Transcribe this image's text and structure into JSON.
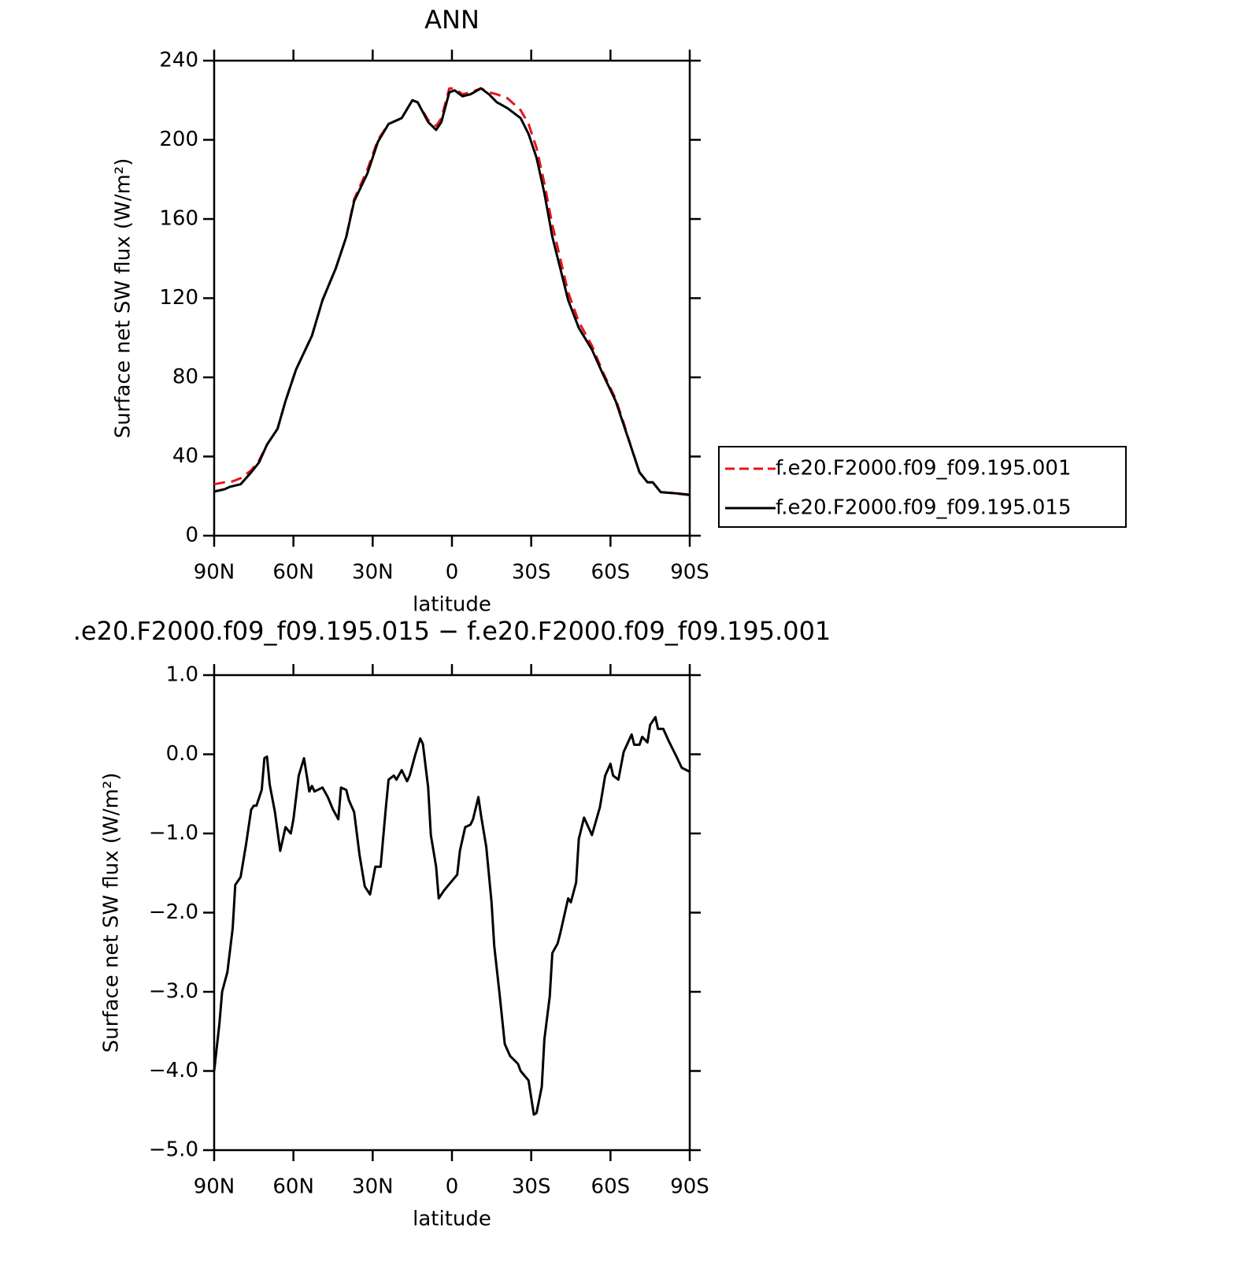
{
  "chart_data": [
    {
      "type": "line",
      "title": "ANN",
      "xlabel": "latitude",
      "ylabel": "Surface net SW flux (W/m²)",
      "xlim": [
        90,
        -90
      ],
      "xticks": [
        {
          "value": 90,
          "label": "90N"
        },
        {
          "value": 60,
          "label": "60N"
        },
        {
          "value": 30,
          "label": "30N"
        },
        0,
        {
          "value": -30,
          "label": "30S"
        },
        {
          "value": -60,
          "label": "60S"
        },
        {
          "value": -90,
          "label": "90S"
        }
      ],
      "ylim": [
        0,
        240
      ],
      "yticks": [
        0,
        40,
        80,
        120,
        160,
        200,
        240
      ],
      "legend": "right",
      "x": [
        90,
        86,
        84,
        80,
        76,
        73,
        70,
        66,
        63,
        59,
        53,
        49,
        44,
        40,
        37,
        32,
        28,
        24,
        19,
        15,
        13,
        9,
        6,
        4,
        1,
        -1,
        -4,
        -7,
        -11,
        -14,
        -17,
        -21,
        -26,
        -29,
        -32,
        -35,
        -38,
        -41,
        -44,
        -48,
        -53,
        -57,
        -62,
        -65,
        -68,
        -71,
        -74,
        -76,
        -79,
        -84,
        -90
      ],
      "series": [
        {
          "name": "f.e20.F2000.f09_f09.195.001",
          "color": "#e8141c",
          "style": "dashed",
          "values": [
            26,
            27,
            27,
            29,
            33,
            38,
            46,
            54,
            68,
            84,
            101,
            119,
            135,
            151,
            170,
            185,
            200,
            208,
            211,
            220,
            219,
            210,
            207,
            211,
            226,
            226,
            223,
            224,
            226,
            224,
            223,
            221,
            215,
            208,
            196,
            178,
            157,
            140,
            123,
            108,
            96,
            83,
            69,
            57,
            44,
            32,
            27,
            27,
            22,
            21.5,
            20.5
          ]
        },
        {
          "name": "f.e20.F2000.f09_f09.195.015",
          "color": "#000000",
          "style": "solid",
          "values": [
            22.3,
            23.5,
            24.7,
            26,
            32,
            37,
            46,
            54,
            68,
            84,
            101,
            119,
            135,
            151,
            169,
            183,
            199,
            208,
            211,
            220,
            219,
            209,
            205,
            209,
            224,
            225,
            222,
            223,
            226,
            223,
            219,
            216,
            211,
            203,
            191,
            173,
            151,
            135,
            119,
            105,
            94,
            82,
            68,
            56,
            44,
            32,
            27,
            27,
            22,
            21.5,
            20.7
          ]
        }
      ]
    },
    {
      "type": "line",
      "title": ".e20.F2000.f09_f09.195.015 − f.e20.F2000.f09_f09.195.001",
      "xlabel": "latitude",
      "ylabel": "Surface net SW flux (W/m²)",
      "xlim": [
        90,
        -90
      ],
      "xticks": [
        {
          "value": 90,
          "label": "90N"
        },
        {
          "value": 60,
          "label": "60N"
        },
        {
          "value": 30,
          "label": "30N"
        },
        0,
        {
          "value": -30,
          "label": "30S"
        },
        {
          "value": -60,
          "label": "60S"
        },
        {
          "value": -90,
          "label": "90S"
        }
      ],
      "ylim": [
        -5,
        1
      ],
      "yticks": [
        {
          "value": -5,
          "label": "−5.0"
        },
        {
          "value": -4,
          "label": "−4.0"
        },
        {
          "value": -3,
          "label": "−3.0"
        },
        {
          "value": -2,
          "label": "−2.0"
        },
        {
          "value": -1,
          "label": "−1.0"
        },
        {
          "value": 0,
          "label": "0.0"
        },
        {
          "value": 1,
          "label": "1.0"
        }
      ],
      "x": [
        90,
        88,
        87,
        85,
        83,
        82,
        80,
        78,
        76,
        75,
        74,
        72,
        71,
        70,
        69,
        67,
        65,
        63,
        61,
        60,
        58,
        56,
        54,
        53,
        52,
        49,
        47,
        45,
        43,
        42,
        40,
        39,
        37,
        35,
        33,
        31,
        29,
        27,
        25,
        24,
        22,
        21,
        19,
        17,
        16,
        14,
        12,
        11,
        9,
        8,
        6,
        5,
        3,
        1,
        -2,
        -3,
        -5,
        -7,
        -8,
        -10,
        -11,
        -13,
        -15,
        -16,
        -18,
        -20,
        -22,
        -25,
        -26,
        -29,
        -31,
        -32,
        -34,
        -35,
        -37,
        -38,
        -40,
        -41,
        -44,
        -45,
        -47,
        -48,
        -50,
        -53,
        -56,
        -58,
        -60,
        -61,
        -63,
        -65,
        -68,
        -69,
        -71,
        -72,
        -74,
        -75,
        -77,
        -78,
        -80,
        -82,
        -85,
        -87,
        -90
      ],
      "series": [
        {
          "color": "#000000",
          "style": "solid",
          "values": [
            -4.0,
            -3.4,
            -3.0,
            -2.75,
            -2.2,
            -1.65,
            -1.55,
            -1.15,
            -0.7,
            -0.65,
            -0.65,
            -0.45,
            -0.05,
            -0.03,
            -0.38,
            -0.73,
            -1.22,
            -0.92,
            -1.0,
            -0.82,
            -0.27,
            -0.05,
            -0.47,
            -0.4,
            -0.47,
            -0.42,
            -0.54,
            -0.7,
            -0.82,
            -0.42,
            -0.45,
            -0.58,
            -0.73,
            -1.27,
            -1.67,
            -1.77,
            -1.42,
            -1.42,
            -0.67,
            -0.32,
            -0.27,
            -0.32,
            -0.2,
            -0.34,
            -0.27,
            -0.02,
            0.2,
            0.13,
            -0.42,
            -1.02,
            -1.42,
            -1.82,
            -1.72,
            -1.64,
            -1.52,
            -1.22,
            -0.92,
            -0.89,
            -0.82,
            -0.54,
            -0.77,
            -1.17,
            -1.87,
            -2.42,
            -3.02,
            -3.66,
            -3.81,
            -3.91,
            -4.0,
            -4.12,
            -4.55,
            -4.53,
            -4.2,
            -3.6,
            -3.06,
            -2.51,
            -2.39,
            -2.26,
            -1.82,
            -1.87,
            -1.62,
            -1.07,
            -0.8,
            -1.02,
            -0.67,
            -0.27,
            -0.12,
            -0.27,
            -0.32,
            0.03,
            0.25,
            0.12,
            0.12,
            0.22,
            0.15,
            0.37,
            0.47,
            0.32,
            0.32,
            0.17,
            -0.03,
            -0.17,
            -0.22
          ]
        }
      ]
    }
  ]
}
